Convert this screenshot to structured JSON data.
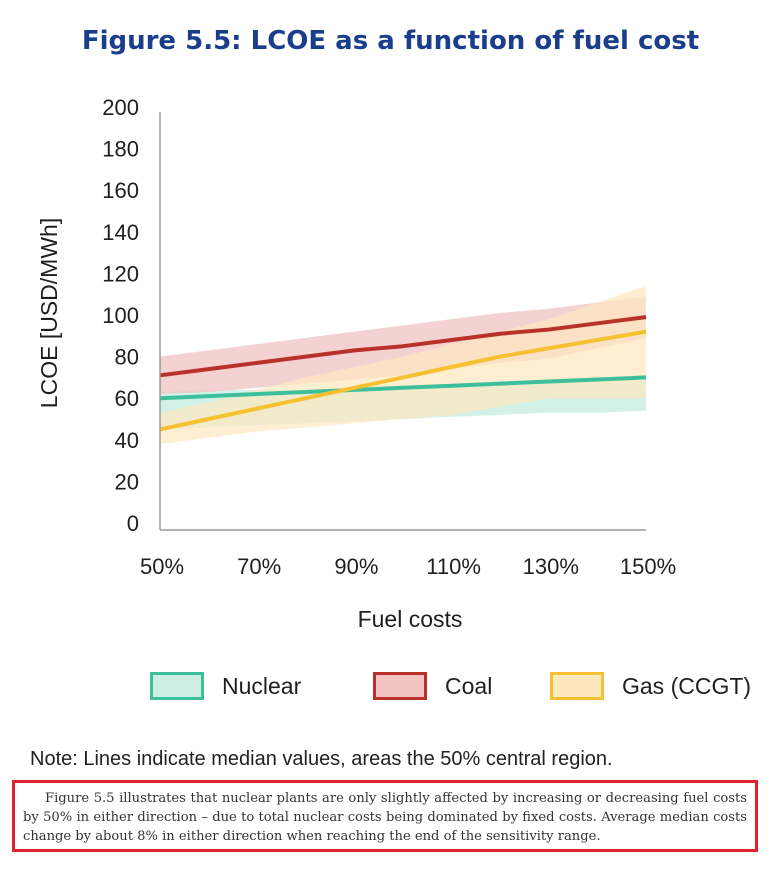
{
  "figure_title": "Figure 5.5: LCOE as a function of fuel cost",
  "note": "Note: Lines indicate median values, areas the 50% central region.",
  "caption": "Figure 5.5 illustrates that nuclear plants are only slightly affected by increasing or decreasing fuel costs by 50% in either direction – due to total nuclear costs being dominated by fixed costs. Average median costs change by about 8% in either direction when reaching the end of the sensitivity range.",
  "chart_data": {
    "type": "line",
    "title": "Figure 5.5: LCOE as a function of fuel cost",
    "xlabel": "Fuel costs",
    "ylabel": "LCOE [USD/MWh]",
    "x": [
      50,
      60,
      70,
      80,
      90,
      100,
      110,
      120,
      130,
      140,
      150
    ],
    "x_tick_labels": [
      "50%",
      "70%",
      "90%",
      "110%",
      "130%",
      "150%"
    ],
    "x_ticks": [
      50,
      70,
      90,
      110,
      130,
      150
    ],
    "y_ticks": [
      0,
      20,
      40,
      60,
      80,
      100,
      120,
      140,
      160,
      180,
      200
    ],
    "xlim": [
      50,
      150
    ],
    "ylim": [
      0,
      200
    ],
    "grid": false,
    "legend_position": "bottom",
    "series": [
      {
        "name": "Nuclear",
        "line_color": "#3dbf9c",
        "fill_color": "#cdeee3",
        "median": [
          60,
          61,
          62,
          63,
          64,
          65,
          66,
          67,
          68,
          69,
          70
        ],
        "lower": [
          45,
          46,
          47,
          48,
          49,
          50,
          51,
          52,
          53,
          53,
          54
        ],
        "upper": [
          63,
          64,
          64,
          64,
          65,
          65,
          66,
          67,
          68,
          69,
          70
        ]
      },
      {
        "name": "Coal",
        "line_color": "#b8312a",
        "fill_color": "#f2c3c3",
        "median": [
          71,
          74,
          77,
          80,
          83,
          85,
          88,
          91,
          93,
          96,
          99
        ],
        "lower": [
          62,
          63,
          65,
          67,
          69,
          71,
          74,
          77,
          79,
          84,
          89
        ],
        "upper": [
          80,
          83,
          86,
          89,
          92,
          95,
          98,
          101,
          103,
          106,
          109
        ]
      },
      {
        "name": "Gas (CCGT)",
        "line_color": "#f6c130",
        "fill_color": "#fde7bf",
        "median": [
          45,
          50,
          55,
          60,
          65,
          70,
          75,
          80,
          84,
          88,
          92
        ],
        "lower": [
          38,
          41,
          44,
          46,
          48,
          50,
          52,
          56,
          60,
          60,
          60
        ],
        "upper": [
          53,
          58,
          64,
          70,
          75,
          80,
          86,
          92,
          98,
          106,
          114
        ]
      }
    ]
  }
}
